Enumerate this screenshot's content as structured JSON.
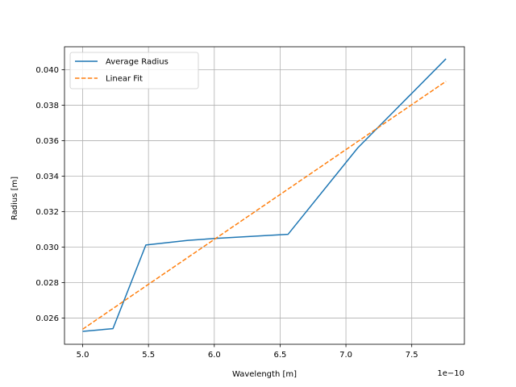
{
  "chart_data": {
    "type": "line",
    "xlabel": "Wavelength [m]",
    "ylabel": "Radius [m]",
    "x_offset_label": "1e−10",
    "xlim": [
      4.862,
      7.9
    ],
    "ylim": [
      0.02452,
      0.0413
    ],
    "x_ticks": [
      5.0,
      5.5,
      6.0,
      6.5,
      7.0,
      7.5
    ],
    "x_tick_labels": [
      "5.0",
      "5.5",
      "6.0",
      "6.5",
      "7.0",
      "7.5"
    ],
    "y_ticks": [
      0.026,
      0.028,
      0.03,
      0.032,
      0.034,
      0.036,
      0.038,
      0.04
    ],
    "y_tick_labels": [
      "0.026",
      "0.028",
      "0.030",
      "0.032",
      "0.034",
      "0.036",
      "0.038",
      "0.040"
    ],
    "grid": true,
    "legend": "top-left",
    "series": [
      {
        "name": "Average Radius",
        "color": "#1f77b4",
        "style": "solid",
        "x": [
          5.0,
          5.23,
          5.48,
          5.8,
          6.03,
          6.56,
          7.09,
          7.76
        ],
        "y": [
          0.02525,
          0.0254,
          0.03012,
          0.03038,
          0.0305,
          0.03072,
          0.0356,
          0.04062
        ]
      },
      {
        "name": "Linear Fit",
        "color": "#ff7f0e",
        "style": "dashed",
        "x": [
          5.0,
          7.76
        ],
        "y": [
          0.02537,
          0.03935
        ]
      }
    ]
  }
}
